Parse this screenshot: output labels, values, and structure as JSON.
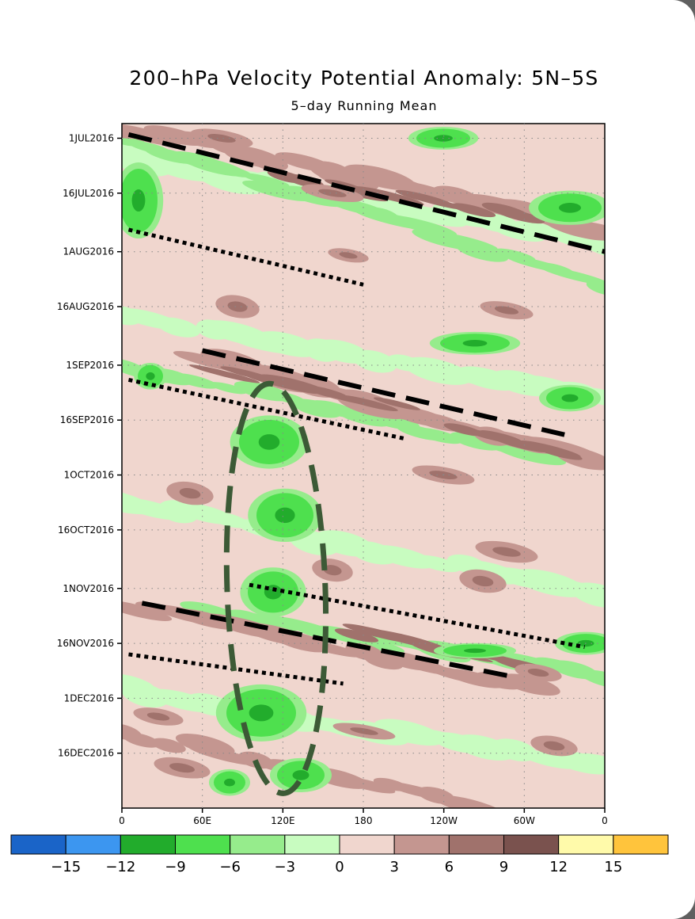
{
  "chart_data": {
    "type": "heatmap",
    "title": "200–hPa Velocity Potential Anomaly: 5N–5S",
    "subtitle": "5–day Running Mean",
    "xlabel": "",
    "ylabel": "",
    "x_ticks": [
      {
        "lon": 0,
        "label": "0"
      },
      {
        "lon": 60,
        "label": "60E"
      },
      {
        "lon": 120,
        "label": "120E"
      },
      {
        "lon": 180,
        "label": "180"
      },
      {
        "lon": 240,
        "label": "120W"
      },
      {
        "lon": 300,
        "label": "60W"
      },
      {
        "lon": 360,
        "label": "0"
      }
    ],
    "x_range": [
      0,
      360
    ],
    "y_range": [
      "2016-06-27",
      "2016-12-31"
    ],
    "y_reversed": true,
    "y_ticks": [
      {
        "date": "2016-07-01",
        "label": "1JUL2016"
      },
      {
        "date": "2016-07-16",
        "label": "16JUL2016"
      },
      {
        "date": "2016-08-01",
        "label": "1AUG2016"
      },
      {
        "date": "2016-08-16",
        "label": "16AUG2016"
      },
      {
        "date": "2016-09-01",
        "label": "1SEP2016"
      },
      {
        "date": "2016-09-16",
        "label": "16SEP2016"
      },
      {
        "date": "2016-10-01",
        "label": "1OCT2016"
      },
      {
        "date": "2016-10-16",
        "label": "16OCT2016"
      },
      {
        "date": "2016-11-01",
        "label": "1NOV2016"
      },
      {
        "date": "2016-11-16",
        "label": "16NOV2016"
      },
      {
        "date": "2016-12-01",
        "label": "1DEC2016"
      },
      {
        "date": "2016-12-16",
        "label": "16DEC2016"
      }
    ],
    "grid": true,
    "colorbar": {
      "levels": [
        "−15",
        "−12",
        "−9",
        "−6",
        "−3",
        "0",
        "3",
        "6",
        "9",
        "12",
        "15"
      ],
      "colors": [
        "#1a64c8",
        "#3c96f0",
        "#22ac2c",
        "#4ee04e",
        "#96ec8c",
        "#c8fcc0",
        "#f0d6ce",
        "#c49690",
        "#a0726c",
        "#7a524e",
        "#fffaaa",
        "#ffc43c"
      ]
    },
    "colors": {
      "neg_strong": "#22ac2c",
      "neg_mid": "#4ee04e",
      "neg_weak": "#96ec8c",
      "neg_faint": "#c8fcc0",
      "pos_faint": "#f0d6ce",
      "pos_weak": "#c49690",
      "pos_mid": "#a0726c",
      "pos_strong": "#7a524e"
    },
    "features": [
      {
        "style": "dashed",
        "points": [
          [
            "2016-06-30",
            5
          ],
          [
            "2016-08-01",
            360
          ]
        ]
      },
      {
        "style": "dotted",
        "points": [
          [
            "2016-07-26",
            5
          ],
          [
            "2016-08-10",
            180
          ]
        ]
      },
      {
        "style": "dashed",
        "points": [
          [
            "2016-08-28",
            60
          ],
          [
            "2016-09-20",
            330
          ]
        ]
      },
      {
        "style": "dotted",
        "points": [
          [
            "2016-09-05",
            5
          ],
          [
            "2016-09-21",
            210
          ]
        ]
      },
      {
        "style": "dashed",
        "points": [
          [
            "2016-11-05",
            15
          ],
          [
            "2016-11-25",
            290
          ]
        ]
      },
      {
        "style": "dotted",
        "points": [
          [
            "2016-10-31",
            95
          ],
          [
            "2016-11-17",
            345
          ]
        ]
      },
      {
        "style": "dotted",
        "points": [
          [
            "2016-11-19",
            5
          ],
          [
            "2016-11-27",
            165
          ]
        ]
      },
      {
        "style": "ellipse",
        "points": [
          [
            "2016-09-06",
            105
          ],
          [
            "2016-12-27",
            118
          ]
        ]
      }
    ]
  }
}
